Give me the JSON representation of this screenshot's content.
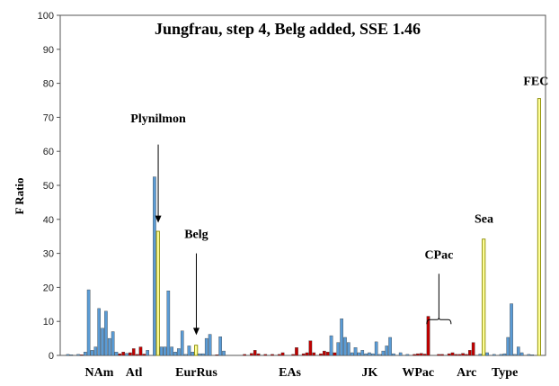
{
  "chart_data": {
    "type": "bar",
    "title": "Jungfrau, step 4, Belg added, SSE 1.46",
    "ylabel": "F Ratio",
    "xlabel": "",
    "ylim": [
      0,
      100
    ],
    "yticks": [
      0,
      10,
      20,
      30,
      40,
      50,
      60,
      70,
      80,
      90,
      100
    ],
    "grid": false,
    "colors": {
      "blue": "#5a9bd5",
      "red": "#c00000",
      "yellow": "#ffff99",
      "outline": "#333333",
      "yellow_outline": "#8a8a00"
    },
    "bars": [
      {
        "x": 1,
        "v": 0.3,
        "c": "blue"
      },
      {
        "x": 2,
        "v": 0.2,
        "c": "blue"
      },
      {
        "x": 4,
        "v": 0.3,
        "c": "blue"
      },
      {
        "x": 5,
        "v": 0.2,
        "c": "red"
      },
      {
        "x": 6,
        "v": 1.0,
        "c": "blue"
      },
      {
        "x": 7,
        "v": 19.3,
        "c": "blue"
      },
      {
        "x": 8,
        "v": 1.5,
        "c": "blue"
      },
      {
        "x": 9,
        "v": 2.5,
        "c": "blue"
      },
      {
        "x": 10,
        "v": 13.8,
        "c": "blue"
      },
      {
        "x": 11,
        "v": 8.0,
        "c": "blue"
      },
      {
        "x": 12,
        "v": 13.0,
        "c": "blue"
      },
      {
        "x": 13,
        "v": 5.0,
        "c": "blue"
      },
      {
        "x": 14,
        "v": 7.0,
        "c": "blue"
      },
      {
        "x": 15,
        "v": 1.0,
        "c": "blue"
      },
      {
        "x": 16,
        "v": 0.5,
        "c": "red"
      },
      {
        "x": 17,
        "v": 1.0,
        "c": "red"
      },
      {
        "x": 18,
        "v": 0.6,
        "c": "blue"
      },
      {
        "x": 19,
        "v": 0.8,
        "c": "red"
      },
      {
        "x": 20,
        "v": 2.0,
        "c": "red"
      },
      {
        "x": 21,
        "v": 0.3,
        "c": "red"
      },
      {
        "x": 22,
        "v": 2.5,
        "c": "red"
      },
      {
        "x": 23,
        "v": 0.4,
        "c": "red"
      },
      {
        "x": 24,
        "v": 1.5,
        "c": "blue"
      },
      {
        "x": 26,
        "v": 52.5,
        "c": "blue"
      },
      {
        "x": 27,
        "v": 36.5,
        "c": "yellow"
      },
      {
        "x": 28,
        "v": 2.5,
        "c": "blue"
      },
      {
        "x": 29,
        "v": 2.5,
        "c": "blue"
      },
      {
        "x": 30,
        "v": 19.0,
        "c": "blue"
      },
      {
        "x": 31,
        "v": 2.5,
        "c": "blue"
      },
      {
        "x": 32,
        "v": 1.0,
        "c": "blue"
      },
      {
        "x": 33,
        "v": 2.0,
        "c": "blue"
      },
      {
        "x": 34,
        "v": 7.2,
        "c": "blue"
      },
      {
        "x": 35,
        "v": 0.3,
        "c": "blue"
      },
      {
        "x": 36,
        "v": 2.8,
        "c": "blue"
      },
      {
        "x": 37,
        "v": 1.0,
        "c": "blue"
      },
      {
        "x": 38,
        "v": 3.0,
        "c": "yellow"
      },
      {
        "x": 39,
        "v": 0.5,
        "c": "blue"
      },
      {
        "x": 40,
        "v": 0.5,
        "c": "blue"
      },
      {
        "x": 41,
        "v": 5.0,
        "c": "blue"
      },
      {
        "x": 42,
        "v": 6.2,
        "c": "blue"
      },
      {
        "x": 44,
        "v": 0.2,
        "c": "red"
      },
      {
        "x": 45,
        "v": 5.5,
        "c": "blue"
      },
      {
        "x": 46,
        "v": 1.3,
        "c": "blue"
      },
      {
        "x": 52,
        "v": 0.3,
        "c": "red"
      },
      {
        "x": 54,
        "v": 0.6,
        "c": "red"
      },
      {
        "x": 55,
        "v": 1.5,
        "c": "red"
      },
      {
        "x": 56,
        "v": 0.5,
        "c": "red"
      },
      {
        "x": 58,
        "v": 0.3,
        "c": "red"
      },
      {
        "x": 60,
        "v": 0.3,
        "c": "red"
      },
      {
        "x": 62,
        "v": 0.3,
        "c": "red"
      },
      {
        "x": 63,
        "v": 0.8,
        "c": "red"
      },
      {
        "x": 66,
        "v": 0.3,
        "c": "red"
      },
      {
        "x": 67,
        "v": 2.3,
        "c": "red"
      },
      {
        "x": 69,
        "v": 0.5,
        "c": "red"
      },
      {
        "x": 70,
        "v": 0.8,
        "c": "red"
      },
      {
        "x": 71,
        "v": 4.3,
        "c": "red"
      },
      {
        "x": 72,
        "v": 0.8,
        "c": "red"
      },
      {
        "x": 74,
        "v": 0.5,
        "c": "red"
      },
      {
        "x": 75,
        "v": 1.3,
        "c": "red"
      },
      {
        "x": 76,
        "v": 1.0,
        "c": "red"
      },
      {
        "x": 77,
        "v": 5.8,
        "c": "blue"
      },
      {
        "x": 78,
        "v": 0.8,
        "c": "red"
      },
      {
        "x": 79,
        "v": 3.8,
        "c": "blue"
      },
      {
        "x": 80,
        "v": 10.8,
        "c": "blue"
      },
      {
        "x": 81,
        "v": 5.3,
        "c": "blue"
      },
      {
        "x": 82,
        "v": 3.8,
        "c": "blue"
      },
      {
        "x": 83,
        "v": 0.8,
        "c": "blue"
      },
      {
        "x": 84,
        "v": 2.3,
        "c": "blue"
      },
      {
        "x": 85,
        "v": 0.8,
        "c": "blue"
      },
      {
        "x": 86,
        "v": 1.5,
        "c": "blue"
      },
      {
        "x": 87,
        "v": 0.5,
        "c": "blue"
      },
      {
        "x": 88,
        "v": 0.8,
        "c": "blue"
      },
      {
        "x": 89,
        "v": 0.5,
        "c": "blue"
      },
      {
        "x": 90,
        "v": 4.0,
        "c": "blue"
      },
      {
        "x": 91,
        "v": 0.3,
        "c": "blue"
      },
      {
        "x": 92,
        "v": 1.3,
        "c": "blue"
      },
      {
        "x": 93,
        "v": 2.8,
        "c": "blue"
      },
      {
        "x": 94,
        "v": 5.3,
        "c": "blue"
      },
      {
        "x": 95,
        "v": 0.5,
        "c": "blue"
      },
      {
        "x": 97,
        "v": 0.8,
        "c": "blue"
      },
      {
        "x": 99,
        "v": 0.3,
        "c": "blue"
      },
      {
        "x": 101,
        "v": 0.3,
        "c": "red"
      },
      {
        "x": 102,
        "v": 0.5,
        "c": "red"
      },
      {
        "x": 103,
        "v": 0.6,
        "c": "red"
      },
      {
        "x": 104,
        "v": 0.4,
        "c": "red"
      },
      {
        "x": 105,
        "v": 11.5,
        "c": "red"
      },
      {
        "x": 108,
        "v": 0.3,
        "c": "red"
      },
      {
        "x": 109,
        "v": 0.3,
        "c": "red"
      },
      {
        "x": 111,
        "v": 0.5,
        "c": "red"
      },
      {
        "x": 112,
        "v": 0.8,
        "c": "red"
      },
      {
        "x": 113,
        "v": 0.3,
        "c": "red"
      },
      {
        "x": 114,
        "v": 0.3,
        "c": "red"
      },
      {
        "x": 115,
        "v": 0.6,
        "c": "red"
      },
      {
        "x": 116,
        "v": 0.3,
        "c": "red"
      },
      {
        "x": 117,
        "v": 1.5,
        "c": "red"
      },
      {
        "x": 118,
        "v": 3.8,
        "c": "red"
      },
      {
        "x": 120,
        "v": 0.4,
        "c": "blue"
      },
      {
        "x": 121,
        "v": 34.2,
        "c": "yellow"
      },
      {
        "x": 122,
        "v": 0.8,
        "c": "blue"
      },
      {
        "x": 124,
        "v": 0.3,
        "c": "blue"
      },
      {
        "x": 126,
        "v": 0.3,
        "c": "blue"
      },
      {
        "x": 127,
        "v": 0.5,
        "c": "blue"
      },
      {
        "x": 128,
        "v": 5.3,
        "c": "blue"
      },
      {
        "x": 129,
        "v": 15.2,
        "c": "blue"
      },
      {
        "x": 130,
        "v": 0.3,
        "c": "blue"
      },
      {
        "x": 131,
        "v": 2.5,
        "c": "blue"
      },
      {
        "x": 132,
        "v": 0.8,
        "c": "blue"
      },
      {
        "x": 134,
        "v": 0.3,
        "c": "blue"
      },
      {
        "x": 135,
        "v": 0.2,
        "c": "blue"
      },
      {
        "x": 137,
        "v": 75.5,
        "c": "yellow"
      }
    ],
    "x_count": 139,
    "group_labels": [
      {
        "text": "NAm",
        "x": 10
      },
      {
        "text": "Atl",
        "x": 20
      },
      {
        "text": "EurRus",
        "x": 38
      },
      {
        "text": "EAs",
        "x": 65
      },
      {
        "text": "JK",
        "x": 88
      },
      {
        "text": "WPac",
        "x": 102
      },
      {
        "text": "Arc",
        "x": 116
      },
      {
        "text": "Type",
        "x": 127
      }
    ],
    "annotations": [
      {
        "text": "Plynilmon",
        "x": 27,
        "label_y": 68.5,
        "arrow_from": 62,
        "arrow_to": 39
      },
      {
        "text": "Belg",
        "x": 38,
        "label_y": 34.5,
        "arrow_from": 30,
        "arrow_to": 6
      },
      {
        "text": "CPac",
        "x": 108,
        "label_y": 28.5,
        "bracket_from": 24,
        "bracket_to": 10.5,
        "bracket_half": 3.5
      },
      {
        "text": "Sea",
        "x": 121,
        "label_y": 39
      },
      {
        "text": "FEC",
        "x": 136,
        "label_y": 79.5
      }
    ]
  }
}
